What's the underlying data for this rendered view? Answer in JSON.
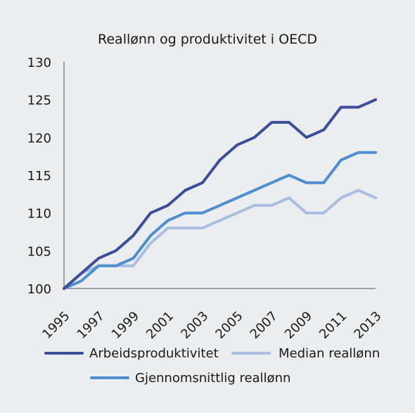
{
  "chart_data": {
    "type": "line",
    "title": "Reallønn og produktivitet i OECD",
    "xlabel": "",
    "ylabel": "",
    "xlim": [
      1995,
      2013
    ],
    "ylim": [
      100,
      130
    ],
    "x": [
      1995,
      1996,
      1997,
      1998,
      1999,
      2000,
      2001,
      2002,
      2003,
      2004,
      2005,
      2006,
      2007,
      2008,
      2009,
      2010,
      2011,
      2012,
      2013
    ],
    "x_tick_labels": [
      "1995",
      "1997",
      "1999",
      "2001",
      "2003",
      "2005",
      "2007",
      "2009",
      "2011",
      "2013"
    ],
    "x_tick_values": [
      1995,
      1997,
      1999,
      2001,
      2003,
      2005,
      2007,
      2009,
      2011,
      2013
    ],
    "y_tick_labels": [
      "100",
      "105",
      "110",
      "115",
      "120",
      "125",
      "130"
    ],
    "y_tick_values": [
      100,
      105,
      110,
      115,
      120,
      125,
      130
    ],
    "grid": false,
    "legend_position": "bottom",
    "series": [
      {
        "name": "Arbeidsproduktivitet",
        "color": "#3a4e9c",
        "values": [
          100,
          102,
          104,
          105,
          107,
          110,
          111,
          113,
          114,
          117,
          119,
          120,
          122,
          122,
          120,
          121,
          124,
          124,
          125
        ]
      },
      {
        "name": "Median reallønn",
        "color": "#a8bde2",
        "values": [
          100,
          102,
          103,
          103,
          103,
          106,
          108,
          108,
          108,
          109,
          110,
          111,
          111,
          112,
          110,
          110,
          112,
          113,
          112
        ]
      },
      {
        "name": "Gjennomsnittlig reallønn",
        "color": "#4d8fd0",
        "values": [
          100,
          101,
          103,
          103,
          104,
          107,
          109,
          110,
          110,
          111,
          112,
          113,
          114,
          115,
          114,
          114,
          117,
          118,
          118
        ]
      }
    ]
  }
}
